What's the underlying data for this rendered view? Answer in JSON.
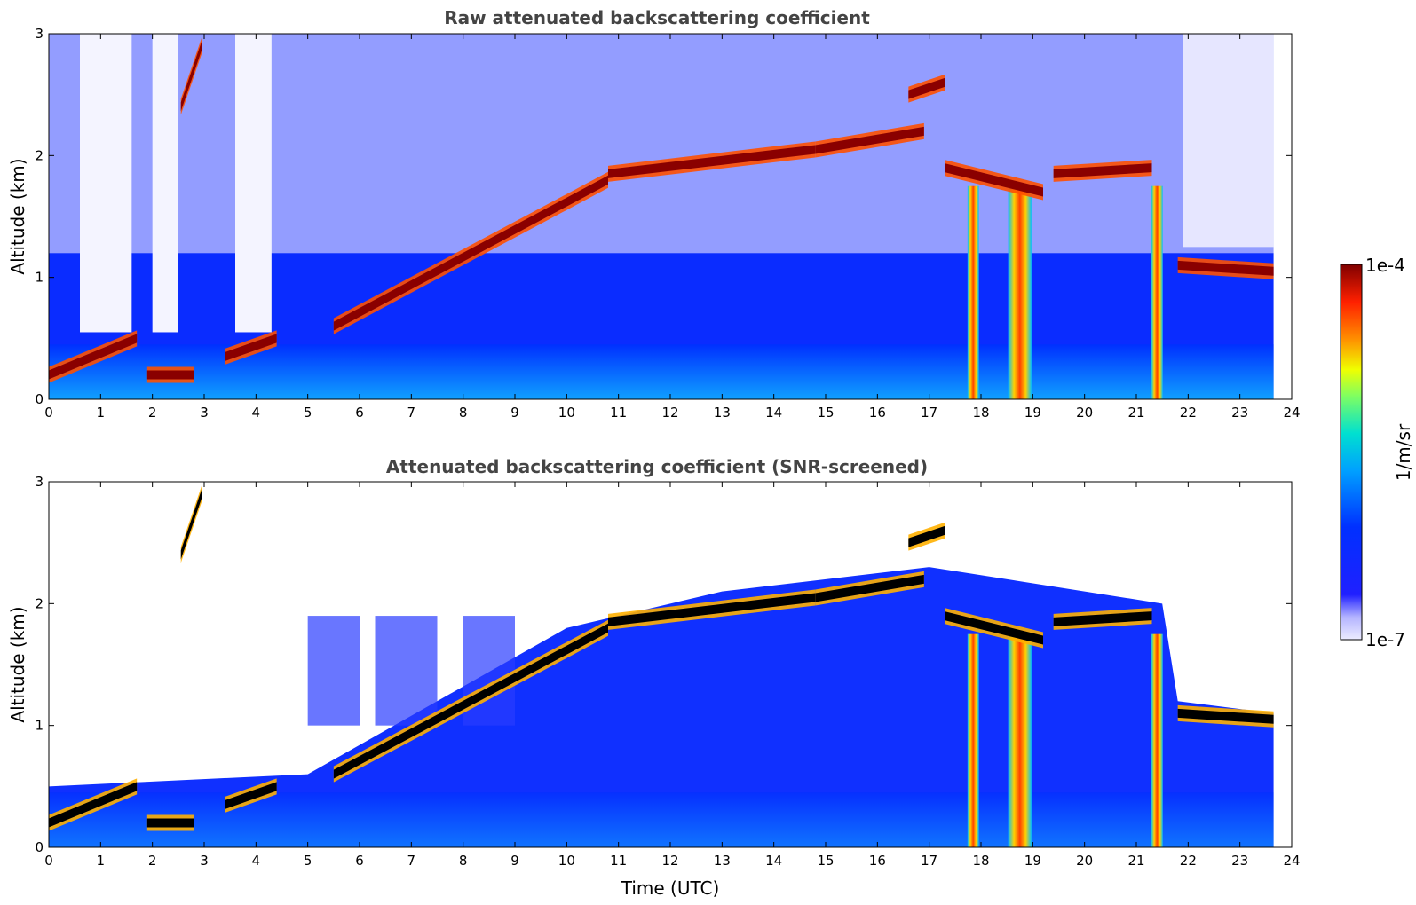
{
  "chart_data": [
    {
      "type": "heatmap",
      "title": "Raw attenuated backscattering coefficient",
      "xlabel": "",
      "ylabel": "Altitude (km)",
      "xlim": [
        0,
        24
      ],
      "ylim": [
        0,
        3
      ],
      "xticks": [
        "0",
        "1",
        "2",
        "3",
        "4",
        "5",
        "6",
        "7",
        "8",
        "9",
        "10",
        "11",
        "12",
        "13",
        "14",
        "15",
        "16",
        "17",
        "18",
        "19",
        "20",
        "21",
        "22",
        "23",
        "24"
      ],
      "yticks": [
        "0",
        "1",
        "2",
        "3"
      ],
      "data_end_hour": 23.65,
      "cloud_layers": [
        {
          "time_start": 0.0,
          "time_end": 1.7,
          "altitude_start_km": 0.2,
          "altitude_end_km": 0.5
        },
        {
          "time_start": 1.9,
          "time_end": 2.8,
          "altitude_start_km": 0.2,
          "altitude_end_km": 0.2
        },
        {
          "time_start": 2.55,
          "time_end": 2.95,
          "altitude_start_km": 2.4,
          "altitude_end_km": 2.9
        },
        {
          "time_start": 3.4,
          "time_end": 4.4,
          "altitude_start_km": 0.35,
          "altitude_end_km": 0.5
        },
        {
          "time_start": 5.5,
          "time_end": 10.8,
          "altitude_start_km": 0.6,
          "altitude_end_km": 1.8
        },
        {
          "time_start": 10.8,
          "time_end": 14.8,
          "altitude_start_km": 1.85,
          "altitude_end_km": 2.05
        },
        {
          "time_start": 14.8,
          "time_end": 16.9,
          "altitude_start_km": 2.05,
          "altitude_end_km": 2.2
        },
        {
          "time_start": 16.6,
          "time_end": 17.3,
          "altitude_start_km": 2.5,
          "altitude_end_km": 2.6
        },
        {
          "time_start": 17.3,
          "time_end": 19.2,
          "altitude_start_km": 1.9,
          "altitude_end_km": 1.7
        },
        {
          "time_start": 19.4,
          "time_end": 21.3,
          "altitude_start_km": 1.85,
          "altitude_end_km": 1.9
        },
        {
          "time_start": 21.8,
          "time_end": 23.65,
          "altitude_start_km": 1.1,
          "altitude_end_km": 1.05
        }
      ],
      "precipitation_shafts_hours": [
        17.85,
        18.75,
        21.4
      ]
    },
    {
      "type": "heatmap",
      "title": "Attenuated backscattering coefficient (SNR-screened)",
      "xlabel": "Time (UTC)",
      "ylabel": "Altitude (km)",
      "xlim": [
        0,
        24
      ],
      "ylim": [
        0,
        3
      ],
      "xticks": [
        "0",
        "1",
        "2",
        "3",
        "4",
        "5",
        "6",
        "7",
        "8",
        "9",
        "10",
        "11",
        "12",
        "13",
        "14",
        "15",
        "16",
        "17",
        "18",
        "19",
        "20",
        "21",
        "22",
        "23",
        "24"
      ],
      "yticks": [
        "0",
        "1",
        "2",
        "3"
      ],
      "data_end_hour": 23.65
    }
  ],
  "colorbar": {
    "label": "1/m/sr",
    "max_label": "1e-4",
    "min_label": "1e-7",
    "colormap": [
      "#e6e6ff",
      "#b4b4ff",
      "#5050ff",
      "#0000ff",
      "#0050ff",
      "#00a0ff",
      "#00e0e0",
      "#40ff80",
      "#c0ff00",
      "#ffe000",
      "#ff8000",
      "#ff2000",
      "#c00000",
      "#800000"
    ]
  }
}
